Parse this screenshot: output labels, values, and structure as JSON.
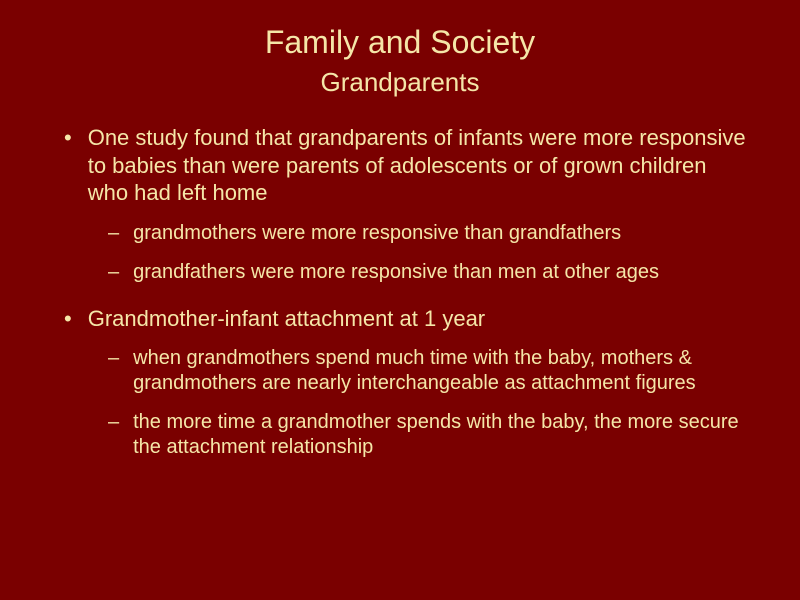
{
  "colors": {
    "background": "#7a0000",
    "text": "#f5e6a8"
  },
  "typography": {
    "title_fontsize": 32,
    "subtitle_fontsize": 26,
    "body_fontsize": 22,
    "sub_fontsize": 20,
    "font_family": "Arial"
  },
  "slide": {
    "title": "Family and Society",
    "subtitle": "Grandparents",
    "bullets": [
      {
        "text": "One study found that grandparents of infants were more responsive to babies than were parents of adolescents or of grown children who had left home",
        "subs": [
          "grandmothers were more responsive than grandfathers",
          "grandfathers were more responsive than men at other ages"
        ]
      },
      {
        "text": "Grandmother-infant attachment at 1 year",
        "subs": [
          "when grandmothers spend much time with the baby, mothers & grandmothers are nearly interchangeable as attachment figures",
          "the more time a grandmother spends with the baby, the more secure the attachment relationship"
        ]
      }
    ]
  }
}
